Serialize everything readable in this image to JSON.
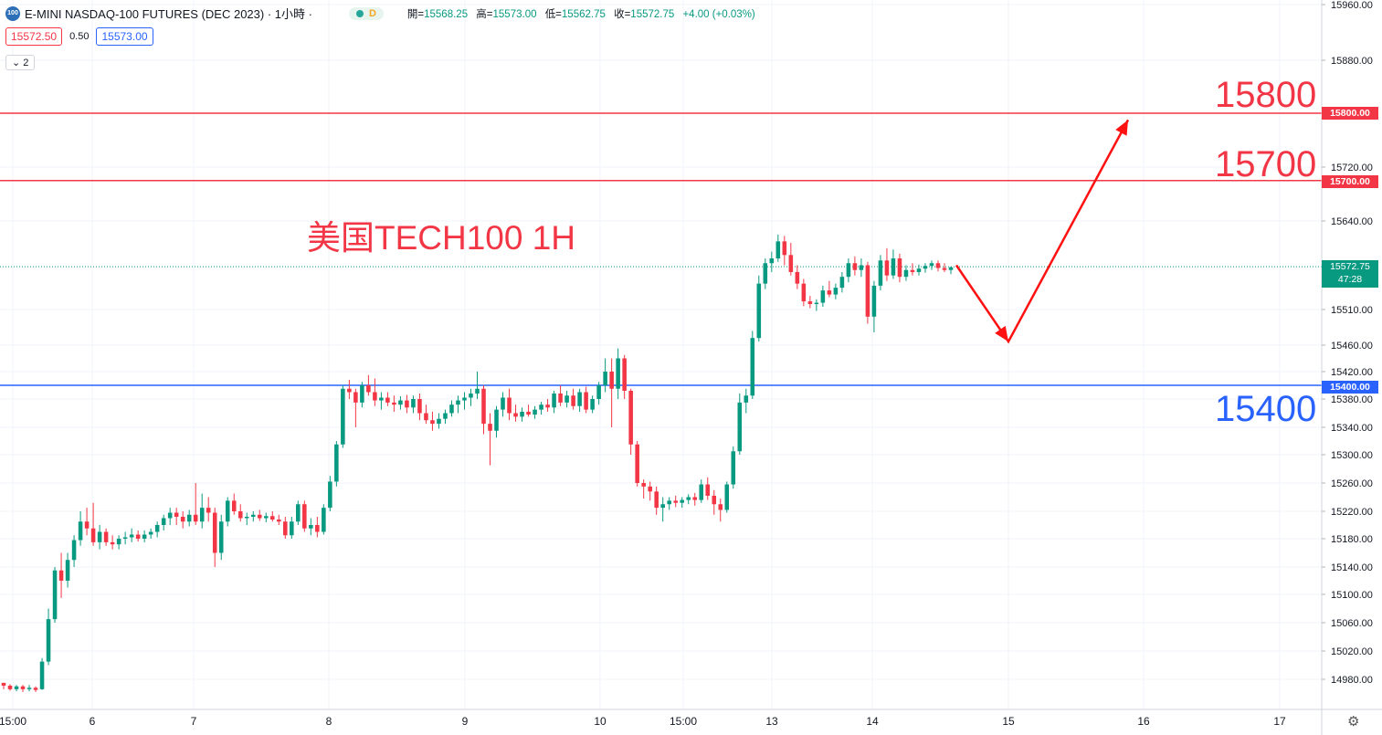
{
  "header": {
    "symbol_logo": "100",
    "title": "E-MINI NASDAQ-100 FUTURES (DEC 2023) · 1小時 ·",
    "badge": "D",
    "ohlc": [
      {
        "label": "開=",
        "value": "15568.25"
      },
      {
        "label": "高=",
        "value": "15573.00"
      },
      {
        "label": "低=",
        "value": "15562.75"
      },
      {
        "label": "收=",
        "value": "15572.75"
      },
      {
        "label": "",
        "value": "+4.00 (+0.03%)"
      }
    ]
  },
  "trade": {
    "sell_price": "15572.50",
    "spread": "0.50",
    "buy_price": "15573.00"
  },
  "indicator_toggle": "2",
  "chart_data": {
    "type": "candlestick",
    "title": "美国TECH100 1H",
    "y_axis": {
      "ticks": [
        "15960.00",
        "15880.00",
        "15800.00",
        "15720.00",
        "15640.00",
        "15510.00",
        "15460.00",
        "15420.00",
        "15380.00",
        "15340.00",
        "15300.00",
        "15260.00",
        "15220.00",
        "15180.00",
        "15140.00",
        "15100.00",
        "15060.00",
        "15020.00",
        "14980.00"
      ]
    },
    "x_axis": {
      "ticks": [
        "15:00",
        "6",
        "7",
        "8",
        "9",
        "10",
        "15:00",
        "13",
        "14",
        "15",
        "16",
        "17"
      ]
    },
    "price_lines": [
      {
        "price": 15800,
        "tag": "15800.00",
        "label": "15800",
        "color": "#f23645"
      },
      {
        "price": 15700,
        "tag": "15700.00",
        "label": "15700",
        "color": "#f23645"
      },
      {
        "price": 15400,
        "tag": "15400.00",
        "label": "15400",
        "color": "#2962ff"
      }
    ],
    "current_price": {
      "price": "15572.75",
      "countdown": "47:28",
      "color": "#089981"
    },
    "forecast_path": [
      15575,
      15465,
      15790
    ],
    "candle_colors": {
      "up": "#089981",
      "down": "#f23645"
    },
    "candles": [
      {
        "o": 14975,
        "h": 14975,
        "l": 14966,
        "c": 14971
      },
      {
        "o": 14971,
        "h": 14973,
        "l": 14964,
        "c": 14966
      },
      {
        "o": 14966,
        "h": 14972,
        "l": 14963,
        "c": 14970
      },
      {
        "o": 14970,
        "h": 14972,
        "l": 14962,
        "c": 14966
      },
      {
        "o": 14966,
        "h": 14972,
        "l": 14963,
        "c": 14968
      },
      {
        "o": 14968,
        "h": 14970,
        "l": 14962,
        "c": 14965
      },
      {
        "o": 14966,
        "h": 15010,
        "l": 14965,
        "c": 15005
      },
      {
        "o": 15005,
        "h": 15080,
        "l": 15000,
        "c": 15065
      },
      {
        "o": 15065,
        "h": 15140,
        "l": 15060,
        "c": 15135
      },
      {
        "o": 15135,
        "h": 15160,
        "l": 15095,
        "c": 15120
      },
      {
        "o": 15120,
        "h": 15160,
        "l": 15110,
        "c": 15150
      },
      {
        "o": 15150,
        "h": 15185,
        "l": 15140,
        "c": 15178
      },
      {
        "o": 15178,
        "h": 15220,
        "l": 15170,
        "c": 15205
      },
      {
        "o": 15205,
        "h": 15225,
        "l": 15185,
        "c": 15195
      },
      {
        "o": 15195,
        "h": 15232,
        "l": 15170,
        "c": 15175
      },
      {
        "o": 15175,
        "h": 15200,
        "l": 15165,
        "c": 15190
      },
      {
        "o": 15190,
        "h": 15195,
        "l": 15170,
        "c": 15175
      },
      {
        "o": 15175,
        "h": 15185,
        "l": 15165,
        "c": 15172
      },
      {
        "o": 15172,
        "h": 15185,
        "l": 15165,
        "c": 15180
      },
      {
        "o": 15180,
        "h": 15190,
        "l": 15172,
        "c": 15182
      },
      {
        "o": 15182,
        "h": 15195,
        "l": 15175,
        "c": 15186
      },
      {
        "o": 15186,
        "h": 15192,
        "l": 15176,
        "c": 15180
      },
      {
        "o": 15180,
        "h": 15192,
        "l": 15175,
        "c": 15186
      },
      {
        "o": 15186,
        "h": 15195,
        "l": 15180,
        "c": 15190
      },
      {
        "o": 15190,
        "h": 15205,
        "l": 15182,
        "c": 15200
      },
      {
        "o": 15200,
        "h": 15215,
        "l": 15192,
        "c": 15210
      },
      {
        "o": 15210,
        "h": 15225,
        "l": 15200,
        "c": 15218
      },
      {
        "o": 15218,
        "h": 15225,
        "l": 15200,
        "c": 15212
      },
      {
        "o": 15212,
        "h": 15220,
        "l": 15195,
        "c": 15205
      },
      {
        "o": 15205,
        "h": 15222,
        "l": 15198,
        "c": 15215
      },
      {
        "o": 15215,
        "h": 15260,
        "l": 15200,
        "c": 15205
      },
      {
        "o": 15205,
        "h": 15245,
        "l": 15195,
        "c": 15225
      },
      {
        "o": 15225,
        "h": 15240,
        "l": 15205,
        "c": 15218
      },
      {
        "o": 15218,
        "h": 15225,
        "l": 15140,
        "c": 15160
      },
      {
        "o": 15160,
        "h": 15215,
        "l": 15150,
        "c": 15205
      },
      {
        "o": 15205,
        "h": 15240,
        "l": 15198,
        "c": 15235
      },
      {
        "o": 15235,
        "h": 15245,
        "l": 15215,
        "c": 15220
      },
      {
        "o": 15220,
        "h": 15230,
        "l": 15205,
        "c": 15210
      },
      {
        "o": 15210,
        "h": 15218,
        "l": 15200,
        "c": 15212
      },
      {
        "o": 15212,
        "h": 15220,
        "l": 15205,
        "c": 15215
      },
      {
        "o": 15215,
        "h": 15222,
        "l": 15206,
        "c": 15210
      },
      {
        "o": 15210,
        "h": 15218,
        "l": 15204,
        "c": 15213
      },
      {
        "o": 15213,
        "h": 15220,
        "l": 15205,
        "c": 15208
      },
      {
        "o": 15208,
        "h": 15215,
        "l": 15200,
        "c": 15205
      },
      {
        "o": 15205,
        "h": 15212,
        "l": 15180,
        "c": 15185
      },
      {
        "o": 15185,
        "h": 15212,
        "l": 15180,
        "c": 15205
      },
      {
        "o": 15205,
        "h": 15235,
        "l": 15200,
        "c": 15230
      },
      {
        "o": 15230,
        "h": 15235,
        "l": 15190,
        "c": 15195
      },
      {
        "o": 15195,
        "h": 15210,
        "l": 15185,
        "c": 15200
      },
      {
        "o": 15200,
        "h": 15212,
        "l": 15182,
        "c": 15190
      },
      {
        "o": 15190,
        "h": 15230,
        "l": 15186,
        "c": 15225
      },
      {
        "o": 15225,
        "h": 15270,
        "l": 15220,
        "c": 15262
      },
      {
        "o": 15262,
        "h": 15320,
        "l": 15255,
        "c": 15315
      },
      {
        "o": 15315,
        "h": 15400,
        "l": 15310,
        "c": 15395
      },
      {
        "o": 15395,
        "h": 15408,
        "l": 15380,
        "c": 15390
      },
      {
        "o": 15390,
        "h": 15395,
        "l": 15340,
        "c": 15375
      },
      {
        "o": 15375,
        "h": 15405,
        "l": 15368,
        "c": 15400
      },
      {
        "o": 15400,
        "h": 15415,
        "l": 15385,
        "c": 15390
      },
      {
        "o": 15390,
        "h": 15410,
        "l": 15370,
        "c": 15378
      },
      {
        "o": 15378,
        "h": 15390,
        "l": 15365,
        "c": 15382
      },
      {
        "o": 15382,
        "h": 15390,
        "l": 15370,
        "c": 15375
      },
      {
        "o": 15375,
        "h": 15385,
        "l": 15362,
        "c": 15372
      },
      {
        "o": 15372,
        "h": 15384,
        "l": 15365,
        "c": 15378
      },
      {
        "o": 15378,
        "h": 15386,
        "l": 15360,
        "c": 15368
      },
      {
        "o": 15368,
        "h": 15385,
        "l": 15360,
        "c": 15380
      },
      {
        "o": 15380,
        "h": 15388,
        "l": 15350,
        "c": 15360
      },
      {
        "o": 15360,
        "h": 15372,
        "l": 15345,
        "c": 15350
      },
      {
        "o": 15350,
        "h": 15362,
        "l": 15335,
        "c": 15345
      },
      {
        "o": 15345,
        "h": 15360,
        "l": 15338,
        "c": 15352
      },
      {
        "o": 15352,
        "h": 15365,
        "l": 15345,
        "c": 15360
      },
      {
        "o": 15360,
        "h": 15378,
        "l": 15355,
        "c": 15372
      },
      {
        "o": 15372,
        "h": 15385,
        "l": 15360,
        "c": 15378
      },
      {
        "o": 15378,
        "h": 15390,
        "l": 15365,
        "c": 15382
      },
      {
        "o": 15382,
        "h": 15395,
        "l": 15370,
        "c": 15388
      },
      {
        "o": 15388,
        "h": 15420,
        "l": 15380,
        "c": 15395
      },
      {
        "o": 15395,
        "h": 15400,
        "l": 15330,
        "c": 15345
      },
      {
        "o": 15345,
        "h": 15360,
        "l": 15285,
        "c": 15335
      },
      {
        "o": 15335,
        "h": 15370,
        "l": 15325,
        "c": 15365
      },
      {
        "o": 15365,
        "h": 15390,
        "l": 15355,
        "c": 15382
      },
      {
        "o": 15382,
        "h": 15395,
        "l": 15350,
        "c": 15360
      },
      {
        "o": 15360,
        "h": 15372,
        "l": 15348,
        "c": 15355
      },
      {
        "o": 15355,
        "h": 15368,
        "l": 15348,
        "c": 15362
      },
      {
        "o": 15362,
        "h": 15372,
        "l": 15355,
        "c": 15358
      },
      {
        "o": 15358,
        "h": 15370,
        "l": 15352,
        "c": 15365
      },
      {
        "o": 15365,
        "h": 15376,
        "l": 15358,
        "c": 15372
      },
      {
        "o": 15372,
        "h": 15380,
        "l": 15362,
        "c": 15368
      },
      {
        "o": 15368,
        "h": 15392,
        "l": 15360,
        "c": 15388
      },
      {
        "o": 15388,
        "h": 15400,
        "l": 15370,
        "c": 15375
      },
      {
        "o": 15375,
        "h": 15392,
        "l": 15368,
        "c": 15385
      },
      {
        "o": 15385,
        "h": 15395,
        "l": 15365,
        "c": 15370
      },
      {
        "o": 15370,
        "h": 15395,
        "l": 15362,
        "c": 15390
      },
      {
        "o": 15390,
        "h": 15398,
        "l": 15360,
        "c": 15365
      },
      {
        "o": 15365,
        "h": 15385,
        "l": 15360,
        "c": 15380
      },
      {
        "o": 15380,
        "h": 15405,
        "l": 15372,
        "c": 15400
      },
      {
        "o": 15400,
        "h": 15440,
        "l": 15390,
        "c": 15420
      },
      {
        "o": 15420,
        "h": 15440,
        "l": 15340,
        "c": 15395
      },
      {
        "o": 15395,
        "h": 15455,
        "l": 15380,
        "c": 15440
      },
      {
        "o": 15440,
        "h": 15445,
        "l": 15380,
        "c": 15392
      },
      {
        "o": 15392,
        "h": 15395,
        "l": 15300,
        "c": 15315
      },
      {
        "o": 15315,
        "h": 15320,
        "l": 15255,
        "c": 15260
      },
      {
        "o": 15260,
        "h": 15265,
        "l": 15238,
        "c": 15255
      },
      {
        "o": 15255,
        "h": 15262,
        "l": 15235,
        "c": 15248
      },
      {
        "o": 15248,
        "h": 15255,
        "l": 15215,
        "c": 15225
      },
      {
        "o": 15225,
        "h": 15240,
        "l": 15205,
        "c": 15230
      },
      {
        "o": 15230,
        "h": 15240,
        "l": 15222,
        "c": 15235
      },
      {
        "o": 15235,
        "h": 15242,
        "l": 15226,
        "c": 15232
      },
      {
        "o": 15232,
        "h": 15240,
        "l": 15225,
        "c": 15236
      },
      {
        "o": 15236,
        "h": 15244,
        "l": 15230,
        "c": 15240
      },
      {
        "o": 15240,
        "h": 15246,
        "l": 15228,
        "c": 15236
      },
      {
        "o": 15236,
        "h": 15265,
        "l": 15232,
        "c": 15258
      },
      {
        "o": 15258,
        "h": 15268,
        "l": 15236,
        "c": 15242
      },
      {
        "o": 15242,
        "h": 15250,
        "l": 15215,
        "c": 15230
      },
      {
        "o": 15230,
        "h": 15238,
        "l": 15205,
        "c": 15222
      },
      {
        "o": 15222,
        "h": 15262,
        "l": 15218,
        "c": 15258
      },
      {
        "o": 15258,
        "h": 15312,
        "l": 15252,
        "c": 15305
      },
      {
        "o": 15305,
        "h": 15388,
        "l": 15300,
        "c": 15375
      },
      {
        "o": 15375,
        "h": 15395,
        "l": 15360,
        "c": 15385
      },
      {
        "o": 15385,
        "h": 15480,
        "l": 15380,
        "c": 15470
      },
      {
        "o": 15470,
        "h": 15560,
        "l": 15465,
        "c": 15548
      },
      {
        "o": 15548,
        "h": 15585,
        "l": 15540,
        "c": 15578
      },
      {
        "o": 15578,
        "h": 15595,
        "l": 15565,
        "c": 15585
      },
      {
        "o": 15585,
        "h": 15620,
        "l": 15580,
        "c": 15610
      },
      {
        "o": 15610,
        "h": 15618,
        "l": 15575,
        "c": 15590
      },
      {
        "o": 15590,
        "h": 15608,
        "l": 15560,
        "c": 15565
      },
      {
        "o": 15565,
        "h": 15575,
        "l": 15540,
        "c": 15548
      },
      {
        "o": 15548,
        "h": 15555,
        "l": 15515,
        "c": 15522
      },
      {
        "o": 15522,
        "h": 15530,
        "l": 15512,
        "c": 15518
      },
      {
        "o": 15518,
        "h": 15525,
        "l": 15508,
        "c": 15520
      },
      {
        "o": 15520,
        "h": 15545,
        "l": 15514,
        "c": 15538
      },
      {
        "o": 15538,
        "h": 15552,
        "l": 15528,
        "c": 15532
      },
      {
        "o": 15532,
        "h": 15548,
        "l": 15525,
        "c": 15542
      },
      {
        "o": 15542,
        "h": 15565,
        "l": 15535,
        "c": 15558
      },
      {
        "o": 15558,
        "h": 15585,
        "l": 15550,
        "c": 15578
      },
      {
        "o": 15578,
        "h": 15588,
        "l": 15560,
        "c": 15568
      },
      {
        "o": 15568,
        "h": 15585,
        "l": 15558,
        "c": 15575
      },
      {
        "o": 15575,
        "h": 15580,
        "l": 15490,
        "c": 15500
      },
      {
        "o": 15500,
        "h": 15552,
        "l": 15478,
        "c": 15545
      },
      {
        "o": 15545,
        "h": 15590,
        "l": 15538,
        "c": 15582
      },
      {
        "o": 15582,
        "h": 15600,
        "l": 15552,
        "c": 15560
      },
      {
        "o": 15560,
        "h": 15598,
        "l": 15555,
        "c": 15585
      },
      {
        "o": 15585,
        "h": 15592,
        "l": 15550,
        "c": 15558
      },
      {
        "o": 15558,
        "h": 15575,
        "l": 15552,
        "c": 15568
      },
      {
        "o": 15568,
        "h": 15578,
        "l": 15560,
        "c": 15565
      },
      {
        "o": 15565,
        "h": 15576,
        "l": 15560,
        "c": 15570
      },
      {
        "o": 15570,
        "h": 15578,
        "l": 15564,
        "c": 15574
      },
      {
        "o": 15574,
        "h": 15582,
        "l": 15568,
        "c": 15578
      },
      {
        "o": 15578,
        "h": 15582,
        "l": 15566,
        "c": 15571
      },
      {
        "o": 15571,
        "h": 15578,
        "l": 15565,
        "c": 15568
      },
      {
        "o": 15568,
        "h": 15573,
        "l": 15562,
        "c": 15572
      }
    ]
  }
}
